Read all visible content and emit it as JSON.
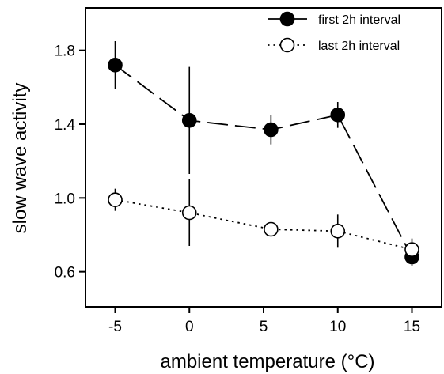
{
  "chart_data": {
    "type": "line",
    "xlabel": "ambient temperature (°C)",
    "ylabel": "slow wave activity",
    "xlim": [
      -7,
      17
    ],
    "ylim": [
      0.41,
      2.03
    ],
    "x_ticks": [
      -5,
      0,
      5,
      10,
      15
    ],
    "x_tick_labels": [
      "-5",
      "0",
      "5",
      "10",
      "15"
    ],
    "y_ticks": [
      0.6,
      1.0,
      1.4,
      1.8
    ],
    "y_tick_labels": [
      "0.6",
      "1.0",
      "1.4",
      "1.8"
    ],
    "grid": false,
    "legend_position": "top-right",
    "series": [
      {
        "name": "first 2h interval",
        "marker": "filled-circle",
        "line_style": "long-dash",
        "x": [
          -5,
          0,
          5.5,
          10,
          15
        ],
        "y": [
          1.72,
          1.42,
          1.37,
          1.45,
          0.68
        ],
        "error": [
          0.13,
          0.29,
          0.08,
          0.07,
          0.05
        ]
      },
      {
        "name": "last 2h interval",
        "marker": "open-circle",
        "line_style": "dotted",
        "x": [
          -5,
          0,
          5.5,
          10,
          15
        ],
        "y": [
          0.99,
          0.92,
          0.83,
          0.82,
          0.72
        ],
        "error": [
          0.06,
          0.18,
          0.03,
          0.09,
          0.06
        ]
      }
    ]
  }
}
